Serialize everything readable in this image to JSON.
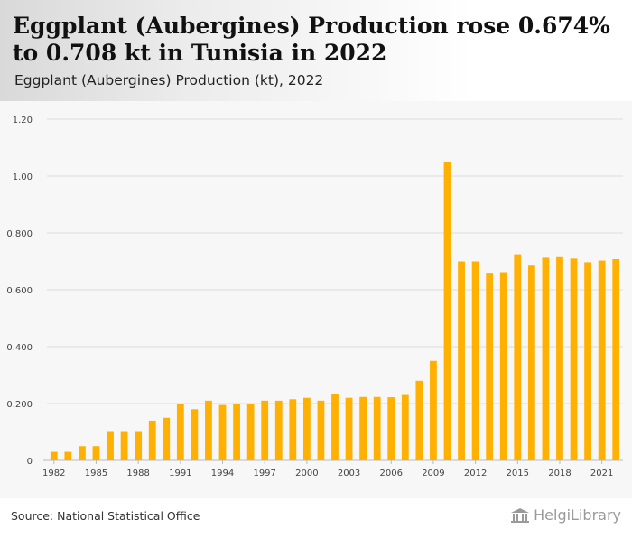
{
  "header": {
    "title": "Eggplant (Aubergines) Production rose 0.674% to 0.708 kt in Tunisia in 2022",
    "subtitle": "Eggplant (Aubergines) Production (kt), 2022"
  },
  "footer": {
    "source": "Source: National Statistical Office",
    "brand": "HelgiLibrary"
  },
  "colors": {
    "bar": "#FFB000",
    "grid": "#dddddd",
    "axis_text": "#444444",
    "background": "#f7f7f7"
  },
  "chart_data": {
    "type": "bar",
    "title": "Eggplant (Aubergines) Production (kt), 2022",
    "xlabel": "",
    "ylabel": "",
    "ylim": [
      0,
      1.2
    ],
    "yticks": [
      "0",
      "0.200",
      "0.400",
      "0.600",
      "0.800",
      "1.00",
      "1.20"
    ],
    "ytick_values": [
      0,
      0.2,
      0.4,
      0.6,
      0.8,
      1.0,
      1.2
    ],
    "xtick_labels": [
      "1982",
      "1985",
      "1988",
      "1991",
      "1994",
      "1997",
      "2000",
      "2003",
      "2006",
      "2009",
      "2012",
      "2015",
      "2018",
      "2021"
    ],
    "grid": true,
    "categories": [
      "1982",
      "1983",
      "1984",
      "1985",
      "1986",
      "1987",
      "1988",
      "1989",
      "1990",
      "1991",
      "1992",
      "1993",
      "1994",
      "1995",
      "1996",
      "1997",
      "1998",
      "1999",
      "2000",
      "2001",
      "2002",
      "2003",
      "2004",
      "2005",
      "2006",
      "2007",
      "2008",
      "2009",
      "2010",
      "2011",
      "2012",
      "2013",
      "2014",
      "2015",
      "2016",
      "2017",
      "2018",
      "2019",
      "2020",
      "2021",
      "2022"
    ],
    "values": [
      0.03,
      0.03,
      0.05,
      0.05,
      0.1,
      0.1,
      0.1,
      0.14,
      0.15,
      0.2,
      0.18,
      0.21,
      0.195,
      0.197,
      0.2,
      0.21,
      0.21,
      0.215,
      0.22,
      0.21,
      0.233,
      0.22,
      0.223,
      0.223,
      0.222,
      0.23,
      0.28,
      0.35,
      1.05,
      0.7,
      0.7,
      0.66,
      0.662,
      0.725,
      0.685,
      0.713,
      0.715,
      0.71,
      0.697,
      0.703,
      0.708
    ]
  }
}
